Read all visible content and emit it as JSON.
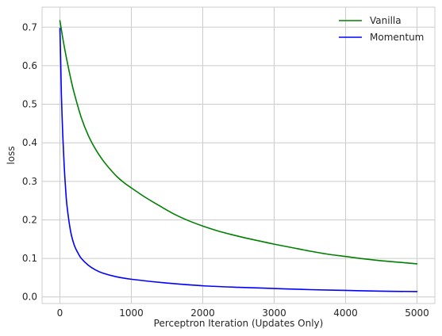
{
  "chart_data": {
    "type": "line",
    "title": "",
    "xlabel": "Perceptron Iteration (Updates Only)",
    "ylabel": "loss",
    "xlim": [
      -250,
      5250
    ],
    "ylim": [
      -0.017,
      0.752
    ],
    "xticks": [
      0,
      1000,
      2000,
      3000,
      4000,
      5000
    ],
    "xtick_labels": [
      "0",
      "1000",
      "2000",
      "3000",
      "4000",
      "5000"
    ],
    "yticks": [
      0.0,
      0.1,
      0.2,
      0.3,
      0.4,
      0.5,
      0.6,
      0.7
    ],
    "ytick_labels": [
      "0.0",
      "0.1",
      "0.2",
      "0.3",
      "0.4",
      "0.5",
      "0.6",
      "0.7"
    ],
    "grid": true,
    "legend_position": "top-right",
    "series": [
      {
        "name": "Vanilla",
        "color": "#008000",
        "x": [
          0,
          50,
          100,
          150,
          200,
          300,
          400,
          500,
          600,
          700,
          800,
          900,
          1000,
          1200,
          1400,
          1600,
          1800,
          2000,
          2200,
          2400,
          2600,
          2800,
          3000,
          3250,
          3500,
          3750,
          4000,
          4250,
          4500,
          4750,
          5000
        ],
        "y": [
          0.717,
          0.661,
          0.612,
          0.568,
          0.529,
          0.465,
          0.418,
          0.383,
          0.355,
          0.332,
          0.312,
          0.296,
          0.283,
          0.258,
          0.236,
          0.215,
          0.198,
          0.184,
          0.172,
          0.162,
          0.153,
          0.145,
          0.137,
          0.128,
          0.119,
          0.111,
          0.105,
          0.099,
          0.094,
          0.09,
          0.086
        ]
      },
      {
        "name": "Momentum",
        "color": "#0000ff",
        "x": [
          0,
          10,
          20,
          40,
          60,
          80,
          100,
          150,
          200,
          250,
          300,
          400,
          500,
          600,
          800,
          1000,
          1500,
          2000,
          2500,
          3000,
          3500,
          4000,
          4500,
          5000
        ],
        "y": [
          0.697,
          0.62,
          0.53,
          0.42,
          0.34,
          0.28,
          0.235,
          0.17,
          0.135,
          0.115,
          0.1,
          0.082,
          0.07,
          0.062,
          0.052,
          0.046,
          0.036,
          0.029,
          0.025,
          0.022,
          0.019,
          0.017,
          0.015,
          0.014
        ]
      }
    ]
  }
}
